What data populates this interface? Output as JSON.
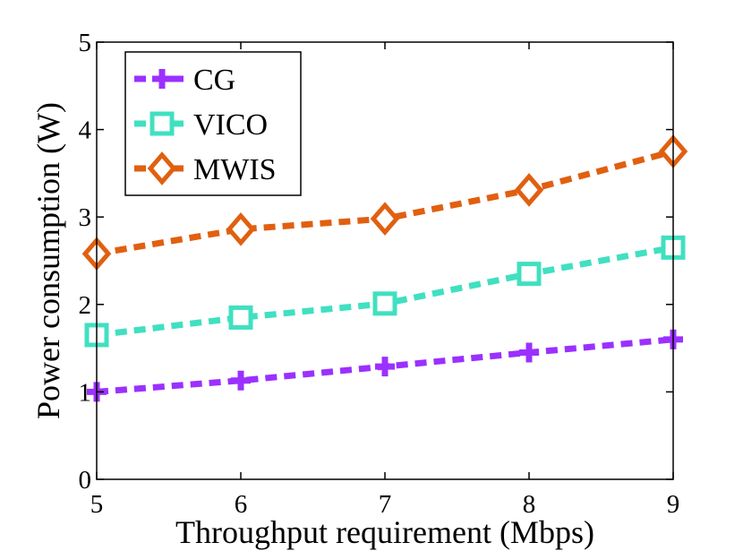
{
  "chart_data": {
    "type": "line",
    "title": "",
    "xlabel": "Throughput requirement (Mbps)",
    "ylabel": "Power consumption (W)",
    "x": [
      5,
      6,
      7,
      8,
      9
    ],
    "xlim": [
      5,
      9
    ],
    "ylim": [
      0,
      5
    ],
    "xticks": [
      "5",
      "6",
      "7",
      "8",
      "9"
    ],
    "yticks": [
      "0",
      "1",
      "2",
      "3",
      "4",
      "5"
    ],
    "grid": false,
    "legend_position": "top-left",
    "series": [
      {
        "name": "CG",
        "marker": "plus",
        "color": "#9b30ff",
        "values": [
          1.0,
          1.13,
          1.29,
          1.45,
          1.6
        ]
      },
      {
        "name": "VICO",
        "marker": "square",
        "color": "#40e0c0",
        "values": [
          1.65,
          1.85,
          2.01,
          2.35,
          2.65
        ]
      },
      {
        "name": "MWIS",
        "marker": "diamond",
        "color": "#e06010",
        "values": [
          2.58,
          2.86,
          2.98,
          3.31,
          3.75
        ]
      }
    ]
  }
}
